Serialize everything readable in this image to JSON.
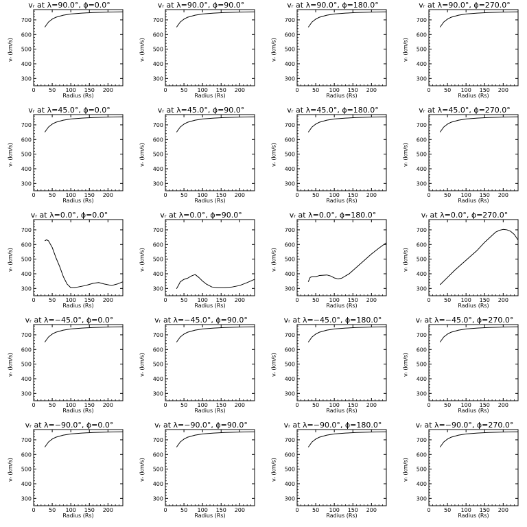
{
  "chart_data": [
    {
      "type": "line",
      "title": "vᵣ at λ=90.0°, ϕ=0.0°",
      "xlabel": "Radius (Rs)",
      "ylabel": "vᵣ (km/s)",
      "xlim": [
        0,
        240
      ],
      "ylim": [
        250,
        770
      ],
      "xticks": [
        0,
        50,
        100,
        150,
        200
      ],
      "yticks": [
        300,
        400,
        500,
        600,
        700
      ],
      "series": [
        {
          "x": [
            30,
            40,
            50,
            60,
            80,
            100,
            130,
            160,
            200,
            240
          ],
          "y": [
            650,
            685,
            705,
            718,
            732,
            740,
            746,
            750,
            753,
            755
          ]
        }
      ]
    },
    {
      "type": "line",
      "title": "vᵣ at λ=90.0°, ϕ=90.0°",
      "xlabel": "Radius (Rs)",
      "ylabel": "vᵣ (km/s)",
      "xlim": [
        0,
        240
      ],
      "ylim": [
        250,
        770
      ],
      "xticks": [
        0,
        50,
        100,
        150,
        200
      ],
      "yticks": [
        300,
        400,
        500,
        600,
        700
      ],
      "series": [
        {
          "x": [
            30,
            40,
            50,
            60,
            80,
            100,
            130,
            160,
            200,
            240
          ],
          "y": [
            650,
            685,
            705,
            718,
            732,
            740,
            746,
            750,
            753,
            755
          ]
        }
      ]
    },
    {
      "type": "line",
      "title": "vᵣ at λ=90.0°, ϕ=180.0°",
      "xlabel": "Radius (Rs)",
      "ylabel": "vᵣ (km/s)",
      "xlim": [
        0,
        240
      ],
      "ylim": [
        250,
        770
      ],
      "xticks": [
        0,
        50,
        100,
        150,
        200
      ],
      "yticks": [
        300,
        400,
        500,
        600,
        700
      ],
      "series": [
        {
          "x": [
            30,
            40,
            50,
            60,
            80,
            100,
            130,
            160,
            200,
            240
          ],
          "y": [
            650,
            685,
            705,
            718,
            732,
            740,
            746,
            750,
            753,
            755
          ]
        }
      ]
    },
    {
      "type": "line",
      "title": "vᵣ at λ=90.0°, ϕ=270.0°",
      "xlabel": "Radius (Rs)",
      "ylabel": "vᵣ (km/s)",
      "xlim": [
        0,
        240
      ],
      "ylim": [
        250,
        770
      ],
      "xticks": [
        0,
        50,
        100,
        150,
        200
      ],
      "yticks": [
        300,
        400,
        500,
        600,
        700
      ],
      "series": [
        {
          "x": [
            30,
            40,
            50,
            60,
            80,
            100,
            130,
            160,
            200,
            240
          ],
          "y": [
            650,
            685,
            705,
            718,
            732,
            740,
            746,
            750,
            753,
            755
          ]
        }
      ]
    },
    {
      "type": "line",
      "title": "vᵣ at λ=45.0°, ϕ=0.0°",
      "xlabel": "Radius (Rs)",
      "ylabel": "vᵣ (km/s)",
      "xlim": [
        0,
        240
      ],
      "ylim": [
        250,
        770
      ],
      "xticks": [
        0,
        50,
        100,
        150,
        200
      ],
      "yticks": [
        300,
        400,
        500,
        600,
        700
      ],
      "series": [
        {
          "x": [
            30,
            40,
            50,
            60,
            80,
            100,
            130,
            160,
            200,
            240
          ],
          "y": [
            650,
            685,
            705,
            718,
            732,
            740,
            746,
            750,
            753,
            755
          ]
        }
      ]
    },
    {
      "type": "line",
      "title": "vᵣ at λ=45.0°, ϕ=90.0°",
      "xlabel": "Radius (Rs)",
      "ylabel": "vᵣ (km/s)",
      "xlim": [
        0,
        240
      ],
      "ylim": [
        250,
        770
      ],
      "xticks": [
        0,
        50,
        100,
        150,
        200
      ],
      "yticks": [
        300,
        400,
        500,
        600,
        700
      ],
      "series": [
        {
          "x": [
            30,
            40,
            50,
            60,
            80,
            100,
            130,
            160,
            200,
            240
          ],
          "y": [
            650,
            685,
            705,
            718,
            732,
            740,
            746,
            750,
            753,
            755
          ]
        }
      ]
    },
    {
      "type": "line",
      "title": "vᵣ at λ=45.0°, ϕ=180.0°",
      "xlabel": "Radius (Rs)",
      "ylabel": "vᵣ (km/s)",
      "xlim": [
        0,
        240
      ],
      "ylim": [
        250,
        770
      ],
      "xticks": [
        0,
        50,
        100,
        150,
        200
      ],
      "yticks": [
        300,
        400,
        500,
        600,
        700
      ],
      "series": [
        {
          "x": [
            30,
            40,
            50,
            60,
            80,
            100,
            130,
            160,
            200,
            240
          ],
          "y": [
            650,
            685,
            705,
            718,
            732,
            740,
            746,
            750,
            753,
            755
          ]
        }
      ]
    },
    {
      "type": "line",
      "title": "vᵣ at λ=45.0°, ϕ=270.0°",
      "xlabel": "Radius (Rs)",
      "ylabel": "vᵣ (km/s)",
      "xlim": [
        0,
        240
      ],
      "ylim": [
        250,
        770
      ],
      "xticks": [
        0,
        50,
        100,
        150,
        200
      ],
      "yticks": [
        300,
        400,
        500,
        600,
        700
      ],
      "series": [
        {
          "x": [
            30,
            40,
            50,
            60,
            80,
            100,
            130,
            160,
            200,
            240
          ],
          "y": [
            650,
            685,
            705,
            718,
            732,
            740,
            746,
            750,
            753,
            755
          ]
        }
      ]
    },
    {
      "type": "line",
      "title": "vᵣ at λ=0.0°, ϕ=0.0°",
      "xlabel": "Radius (Rs)",
      "ylabel": "vᵣ (km/s)",
      "xlim": [
        0,
        240
      ],
      "ylim": [
        250,
        770
      ],
      "xticks": [
        0,
        50,
        100,
        150,
        200
      ],
      "yticks": [
        300,
        400,
        500,
        600,
        700
      ],
      "series": [
        {
          "x": [
            30,
            35,
            40,
            50,
            60,
            70,
            80,
            90,
            100,
            110,
            120,
            140,
            160,
            175,
            190,
            210,
            225,
            240
          ],
          "y": [
            625,
            632,
            625,
            580,
            510,
            450,
            380,
            330,
            305,
            305,
            310,
            320,
            335,
            340,
            330,
            320,
            330,
            345
          ]
        }
      ]
    },
    {
      "type": "line",
      "title": "vᵣ at λ=0.0°, ϕ=90.0°",
      "xlabel": "Radius (Rs)",
      "ylabel": "vᵣ (km/s)",
      "xlim": [
        0,
        240
      ],
      "ylim": [
        250,
        770
      ],
      "xticks": [
        0,
        50,
        100,
        150,
        200
      ],
      "yticks": [
        300,
        400,
        500,
        600,
        700
      ],
      "series": [
        {
          "x": [
            30,
            35,
            40,
            50,
            60,
            70,
            80,
            90,
            100,
            110,
            125,
            140,
            160,
            180,
            200,
            220,
            240
          ],
          "y": [
            298,
            320,
            345,
            362,
            370,
            385,
            395,
            375,
            350,
            330,
            310,
            305,
            305,
            310,
            320,
            340,
            362
          ]
        }
      ]
    },
    {
      "type": "line",
      "title": "vᵣ at λ=0.0°, ϕ=180.0°",
      "xlabel": "Radius (Rs)",
      "ylabel": "vᵣ (km/s)",
      "xlim": [
        0,
        240
      ],
      "ylim": [
        250,
        770
      ],
      "xticks": [
        0,
        50,
        100,
        150,
        200
      ],
      "yticks": [
        300,
        400,
        500,
        600,
        700
      ],
      "series": [
        {
          "x": [
            30,
            35,
            40,
            50,
            60,
            70,
            80,
            90,
            100,
            110,
            120,
            140,
            160,
            180,
            200,
            220,
            240
          ],
          "y": [
            345,
            375,
            380,
            380,
            388,
            390,
            392,
            385,
            372,
            365,
            370,
            400,
            445,
            490,
            535,
            575,
            612
          ]
        }
      ]
    },
    {
      "type": "line",
      "title": "vᵣ at λ=0.0°, ϕ=270.0°",
      "xlabel": "Radius (Rs)",
      "ylabel": "vᵣ (km/s)",
      "xlim": [
        0,
        240
      ],
      "ylim": [
        250,
        770
      ],
      "xticks": [
        0,
        50,
        100,
        150,
        200
      ],
      "yticks": [
        300,
        400,
        500,
        600,
        700
      ],
      "series": [
        {
          "x": [
            30,
            50,
            70,
            90,
            110,
            130,
            150,
            165,
            180,
            190,
            200,
            210,
            220,
            230,
            240
          ],
          "y": [
            325,
            375,
            425,
            470,
            515,
            560,
            615,
            650,
            685,
            697,
            703,
            700,
            690,
            668,
            630
          ]
        }
      ]
    },
    {
      "type": "line",
      "title": "vᵣ at λ=−45.0°, ϕ=0.0°",
      "xlabel": "Radius (Rs)",
      "ylabel": "vᵣ (km/s)",
      "xlim": [
        0,
        240
      ],
      "ylim": [
        250,
        770
      ],
      "xticks": [
        0,
        50,
        100,
        150,
        200
      ],
      "yticks": [
        300,
        400,
        500,
        600,
        700
      ],
      "series": [
        {
          "x": [
            30,
            40,
            50,
            60,
            80,
            100,
            130,
            160,
            200,
            240
          ],
          "y": [
            650,
            685,
            705,
            718,
            732,
            740,
            746,
            750,
            753,
            755
          ]
        }
      ]
    },
    {
      "type": "line",
      "title": "vᵣ at λ=−45.0°, ϕ=90.0°",
      "xlabel": "Radius (Rs)",
      "ylabel": "vᵣ (km/s)",
      "xlim": [
        0,
        240
      ],
      "ylim": [
        250,
        770
      ],
      "xticks": [
        0,
        50,
        100,
        150,
        200
      ],
      "yticks": [
        300,
        400,
        500,
        600,
        700
      ],
      "series": [
        {
          "x": [
            30,
            40,
            50,
            60,
            80,
            100,
            130,
            160,
            200,
            240
          ],
          "y": [
            650,
            685,
            705,
            718,
            732,
            740,
            746,
            750,
            753,
            755
          ]
        }
      ]
    },
    {
      "type": "line",
      "title": "vᵣ at λ=−45.0°, ϕ=180.0°",
      "xlabel": "Radius (Rs)",
      "ylabel": "vᵣ (km/s)",
      "xlim": [
        0,
        240
      ],
      "ylim": [
        250,
        770
      ],
      "xticks": [
        0,
        50,
        100,
        150,
        200
      ],
      "yticks": [
        300,
        400,
        500,
        600,
        700
      ],
      "series": [
        {
          "x": [
            30,
            40,
            50,
            60,
            80,
            100,
            130,
            160,
            200,
            240
          ],
          "y": [
            650,
            685,
            705,
            718,
            732,
            740,
            746,
            750,
            753,
            755
          ]
        }
      ]
    },
    {
      "type": "line",
      "title": "vᵣ at λ=−45.0°, ϕ=270.0°",
      "xlabel": "Radius (Rs)",
      "ylabel": "vᵣ (km/s)",
      "xlim": [
        0,
        240
      ],
      "ylim": [
        250,
        770
      ],
      "xticks": [
        0,
        50,
        100,
        150,
        200
      ],
      "yticks": [
        300,
        400,
        500,
        600,
        700
      ],
      "series": [
        {
          "x": [
            30,
            40,
            50,
            60,
            80,
            100,
            130,
            160,
            200,
            240
          ],
          "y": [
            650,
            685,
            705,
            718,
            732,
            740,
            746,
            750,
            753,
            755
          ]
        }
      ]
    },
    {
      "type": "line",
      "title": "vᵣ at λ=−90.0°, ϕ=0.0°",
      "xlabel": "Radius (Rs)",
      "ylabel": "vᵣ (km/s)",
      "xlim": [
        0,
        240
      ],
      "ylim": [
        250,
        770
      ],
      "xticks": [
        0,
        50,
        100,
        150,
        200
      ],
      "yticks": [
        300,
        400,
        500,
        600,
        700
      ],
      "series": [
        {
          "x": [
            30,
            40,
            50,
            60,
            80,
            100,
            130,
            160,
            200,
            240
          ],
          "y": [
            650,
            685,
            705,
            718,
            732,
            740,
            746,
            750,
            753,
            755
          ]
        }
      ]
    },
    {
      "type": "line",
      "title": "vᵣ at λ=−90.0°, ϕ=90.0°",
      "xlabel": "Radius (Rs)",
      "ylabel": "vᵣ (km/s)",
      "xlim": [
        0,
        240
      ],
      "ylim": [
        250,
        770
      ],
      "xticks": [
        0,
        50,
        100,
        150,
        200
      ],
      "yticks": [
        300,
        400,
        500,
        600,
        700
      ],
      "series": [
        {
          "x": [
            30,
            40,
            50,
            60,
            80,
            100,
            130,
            160,
            200,
            240
          ],
          "y": [
            650,
            685,
            705,
            718,
            732,
            740,
            746,
            750,
            753,
            755
          ]
        }
      ]
    },
    {
      "type": "line",
      "title": "vᵣ at λ=−90.0°, ϕ=180.0°",
      "xlabel": "Radius (Rs)",
      "ylabel": "vᵣ (km/s)",
      "xlim": [
        0,
        240
      ],
      "ylim": [
        250,
        770
      ],
      "xticks": [
        0,
        50,
        100,
        150,
        200
      ],
      "yticks": [
        300,
        400,
        500,
        600,
        700
      ],
      "series": [
        {
          "x": [
            30,
            40,
            50,
            60,
            80,
            100,
            130,
            160,
            200,
            240
          ],
          "y": [
            650,
            685,
            705,
            718,
            732,
            740,
            746,
            750,
            753,
            755
          ]
        }
      ]
    },
    {
      "type": "line",
      "title": "vᵣ at λ=−90.0°, ϕ=270.0°",
      "xlabel": "Radius (Rs)",
      "ylabel": "vᵣ (km/s)",
      "xlim": [
        0,
        240
      ],
      "ylim": [
        250,
        770
      ],
      "xticks": [
        0,
        50,
        100,
        150,
        200
      ],
      "yticks": [
        300,
        400,
        500,
        600,
        700
      ],
      "series": [
        {
          "x": [
            30,
            40,
            50,
            60,
            80,
            100,
            130,
            160,
            200,
            240
          ],
          "y": [
            650,
            685,
            705,
            718,
            732,
            740,
            746,
            750,
            753,
            755
          ]
        }
      ]
    }
  ]
}
